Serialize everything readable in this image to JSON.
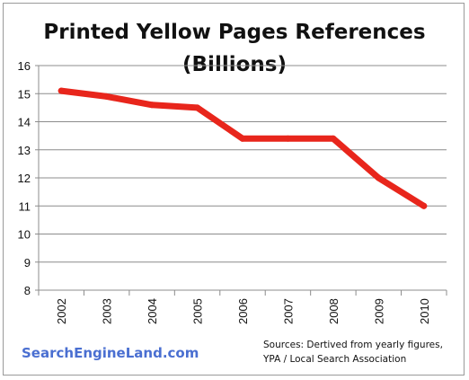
{
  "chart_data": {
    "type": "line",
    "title_lines": [
      "Printed Yellow Pages References",
      "(Billions)"
    ],
    "x": [
      "2002",
      "2003",
      "2004",
      "2005",
      "2006",
      "2007",
      "2008",
      "2009",
      "2010"
    ],
    "values": [
      15.1,
      14.9,
      14.6,
      14.5,
      13.4,
      13.4,
      13.4,
      12.0,
      11.0
    ],
    "ylim": [
      8,
      16
    ],
    "yticks": [
      8,
      9,
      10,
      11,
      12,
      13,
      14,
      15,
      16
    ],
    "grid": true,
    "line_color": "#e8261c",
    "grid_color": "#8c8c8c"
  },
  "footer": {
    "brand": "SearchEngineLand.com",
    "brand_color": "#4a6fd1",
    "source_lines": [
      "Sources: Dertived from yearly figures,",
      "YPA / Local Search Association"
    ]
  }
}
